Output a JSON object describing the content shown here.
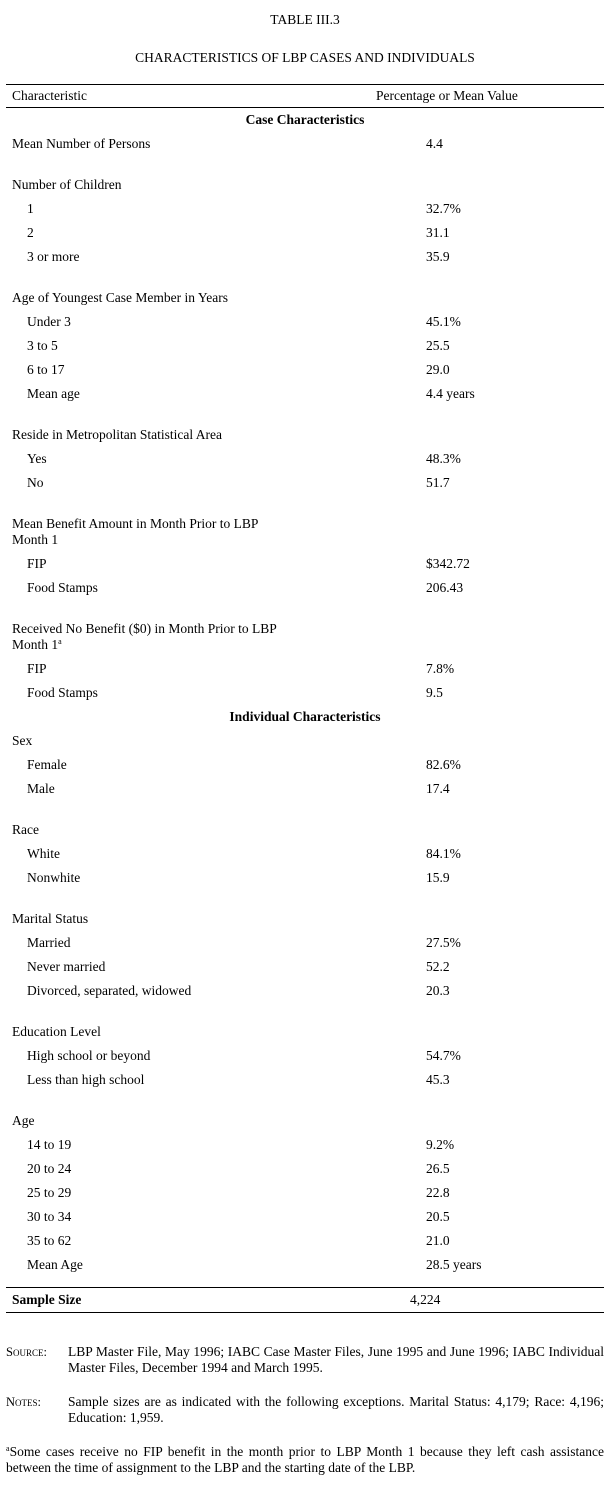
{
  "title": "TABLE III.3",
  "subtitle": "CHARACTERISTICS OF LBP CASES AND INDIVIDUALS",
  "table": {
    "columns": [
      "Characteristic",
      "Percentage or Mean Value"
    ],
    "rows": [
      {
        "section": "Case Characteristics"
      },
      {
        "label": "Mean Number of Persons",
        "value": "4.4"
      },
      {
        "group": "Number of Children"
      },
      {
        "item": "1",
        "value": "32.7%"
      },
      {
        "item": "2",
        "value": "31.1"
      },
      {
        "item": "3 or more",
        "value": "35.9"
      },
      {
        "group": "Age of Youngest Case Member in Years"
      },
      {
        "item": "Under 3",
        "value": "45.1%"
      },
      {
        "item": "3 to 5",
        "value": "25.5"
      },
      {
        "item": "6 to 17",
        "value": "29.0"
      },
      {
        "item": "Mean age",
        "value": "4.4 years"
      },
      {
        "group": "Reside in Metropolitan Statistical Area"
      },
      {
        "item": "Yes",
        "value": "48.3%"
      },
      {
        "item": "No",
        "value": "51.7"
      },
      {
        "group": "Mean Benefit Amount in Month Prior to LBP Month 1"
      },
      {
        "item": "FIP",
        "value": "$342.72"
      },
      {
        "item": "Food Stamps",
        "value": "206.43"
      },
      {
        "group": "Received No Benefit ($0) in Month Prior to LBP Month 1",
        "footnote_mark": "a"
      },
      {
        "item": "FIP",
        "value": "7.8%"
      },
      {
        "item": "Food Stamps",
        "value": "9.5"
      },
      {
        "section": "Individual Characteristics"
      },
      {
        "label": "Sex"
      },
      {
        "item": "Female",
        "value": "82.6%"
      },
      {
        "item": "Male",
        "value": "17.4"
      },
      {
        "group": "Race"
      },
      {
        "item": "White",
        "value": "84.1%"
      },
      {
        "item": "Nonwhite",
        "value": "15.9"
      },
      {
        "group": "Marital Status"
      },
      {
        "item": "Married",
        "value": "27.5%"
      },
      {
        "item": "Never married",
        "value": "52.2"
      },
      {
        "item": "Divorced, separated, widowed",
        "value": "20.3"
      },
      {
        "group": "Education Level"
      },
      {
        "item": "High school or beyond",
        "value": "54.7%"
      },
      {
        "item": "Less than high school",
        "value": "45.3"
      },
      {
        "group": "Age"
      },
      {
        "item": "14 to 19",
        "value": "9.2%"
      },
      {
        "item": "20 to 24",
        "value": "26.5"
      },
      {
        "item": "25 to 29",
        "value": "22.8"
      },
      {
        "item": "30 to 34",
        "value": "20.5"
      },
      {
        "item": "35 to 62",
        "value": "21.0"
      },
      {
        "item": "Mean Age",
        "value": "28.5 years"
      }
    ],
    "total": {
      "label": "Sample Size",
      "value": "4,224"
    }
  },
  "notes": [
    {
      "label": "Source:",
      "text": "LBP Master File, May 1996; IABC Case Master Files, June 1995 and June 1996; IABC Individual Master Files, December 1994 and March 1995."
    },
    {
      "label": "Notes:",
      "text": "Sample sizes are as indicated with the following exceptions. Marital Status: 4,179; Race: 4,196; Education: 1,959."
    }
  ],
  "footnote": {
    "mark": "a",
    "text": "Some cases receive no FIP benefit in the month prior to LBP Month 1 because they left cash assistance between the time of assignment to the LBP and the starting date of the LBP."
  }
}
